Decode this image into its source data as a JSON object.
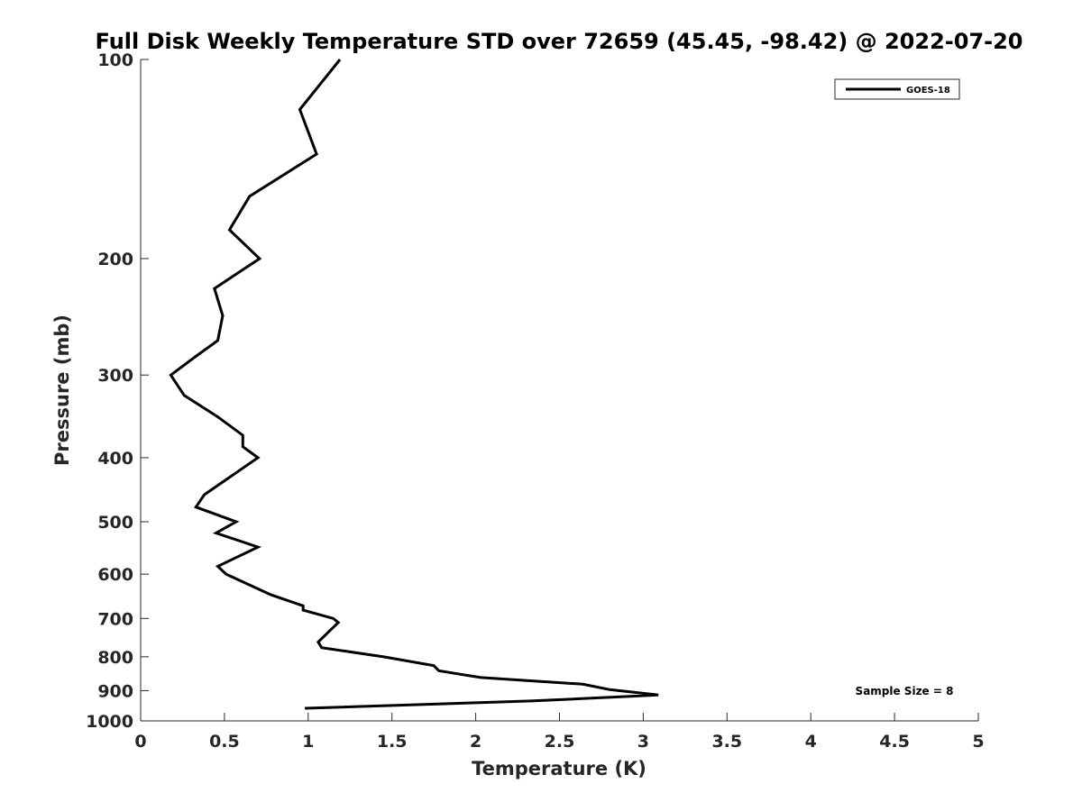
{
  "chart_data": {
    "type": "line",
    "title": "Full Disk Weekly Temperature STD over 72659 (45.45, -98.42) @ 2022-07-20",
    "xlabel": "Temperature (K)",
    "ylabel": "Pressure (mb)",
    "xlim": [
      0,
      5
    ],
    "ylim": [
      100,
      1000
    ],
    "y_scale": "log",
    "y_reversed": true,
    "x_ticks": [
      "0",
      "0.5",
      "1",
      "1.5",
      "2",
      "2.5",
      "3",
      "3.5",
      "4",
      "4.5",
      "5"
    ],
    "y_ticks": [
      "100",
      "200",
      "300",
      "400",
      "500",
      "600",
      "700",
      "800",
      "900",
      "1000"
    ],
    "legend": {
      "position": "top-right",
      "entries": [
        "GOES-18"
      ]
    },
    "annotation": "Sample Size = 8",
    "grid": false,
    "series": [
      {
        "name": "GOES-18",
        "color": "#000000",
        "points": [
          {
            "x": 1.19,
            "p": 100
          },
          {
            "x": 0.95,
            "p": 119
          },
          {
            "x": 1.05,
            "p": 139
          },
          {
            "x": 0.65,
            "p": 161
          },
          {
            "x": 0.53,
            "p": 181
          },
          {
            "x": 0.71,
            "p": 200
          },
          {
            "x": 0.44,
            "p": 222
          },
          {
            "x": 0.49,
            "p": 244
          },
          {
            "x": 0.46,
            "p": 266
          },
          {
            "x": 0.33,
            "p": 281
          },
          {
            "x": 0.18,
            "p": 300
          },
          {
            "x": 0.26,
            "p": 322
          },
          {
            "x": 0.46,
            "p": 347
          },
          {
            "x": 0.61,
            "p": 370
          },
          {
            "x": 0.61,
            "p": 385
          },
          {
            "x": 0.7,
            "p": 400
          },
          {
            "x": 0.38,
            "p": 455
          },
          {
            "x": 0.33,
            "p": 475
          },
          {
            "x": 0.57,
            "p": 500
          },
          {
            "x": 0.45,
            "p": 520
          },
          {
            "x": 0.7,
            "p": 546
          },
          {
            "x": 0.46,
            "p": 584
          },
          {
            "x": 0.51,
            "p": 600
          },
          {
            "x": 0.78,
            "p": 645
          },
          {
            "x": 0.97,
            "p": 670
          },
          {
            "x": 0.97,
            "p": 680
          },
          {
            "x": 1.15,
            "p": 700
          },
          {
            "x": 1.18,
            "p": 710
          },
          {
            "x": 1.13,
            "p": 730
          },
          {
            "x": 1.06,
            "p": 760
          },
          {
            "x": 1.08,
            "p": 775
          },
          {
            "x": 1.45,
            "p": 800
          },
          {
            "x": 1.75,
            "p": 825
          },
          {
            "x": 1.78,
            "p": 840
          },
          {
            "x": 2.03,
            "p": 860
          },
          {
            "x": 2.64,
            "p": 880
          },
          {
            "x": 2.8,
            "p": 897
          },
          {
            "x": 3.09,
            "p": 914
          },
          {
            "x": 2.33,
            "p": 933
          },
          {
            "x": 0.98,
            "p": 957
          }
        ]
      }
    ]
  }
}
